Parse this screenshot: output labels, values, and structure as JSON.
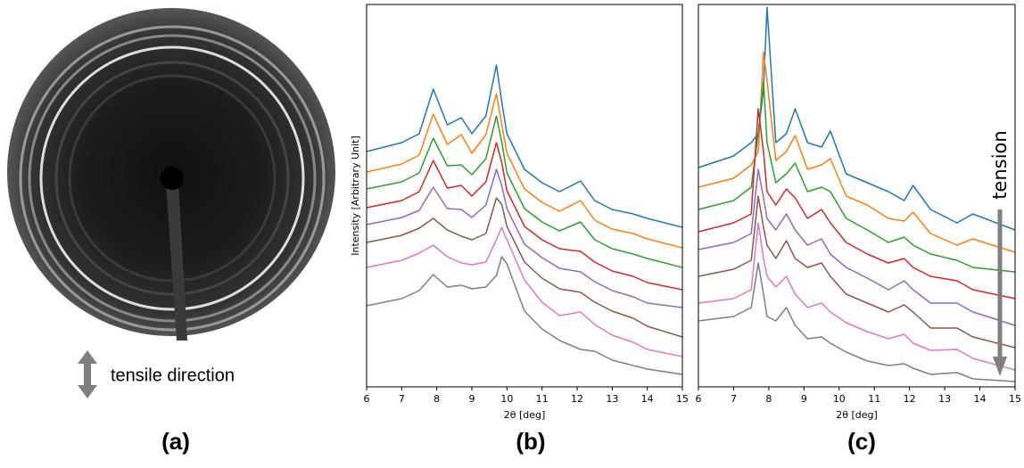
{
  "figure": {
    "panel_labels": [
      "(a)",
      "(b)",
      "(c)"
    ],
    "image_caption": "tensile direction"
  },
  "chart_data": [
    {
      "type": "line",
      "xlabel": "2θ [deg]",
      "ylabel": "Intensity [Arbitrary Unit]",
      "xlim": [
        6,
        15
      ],
      "xticks": [
        6,
        7,
        8,
        9,
        10,
        11,
        12,
        13,
        14,
        15
      ],
      "ylim": [
        0,
        429
      ],
      "x": [
        6,
        7,
        7.5,
        7.9,
        8.3,
        8.7,
        9.0,
        9.4,
        9.7,
        9.85,
        10.0,
        10.5,
        11,
        11.5,
        12.1,
        12.5,
        13,
        13.6,
        14,
        15
      ],
      "series": [
        {
          "color": "#1f77b4",
          "values": [
            264,
            274,
            284,
            334,
            294,
            302,
            284,
            304,
            361,
            320,
            284,
            244,
            229,
            219,
            231,
            209,
            199,
            194,
            189,
            179
          ]
        },
        {
          "color": "#ff7f0e",
          "values": [
            241,
            250,
            260,
            306,
            272,
            283,
            262,
            283,
            329,
            295,
            262,
            222,
            207,
            197,
            209,
            187,
            177,
            172,
            166,
            156
          ]
        },
        {
          "color": "#2ca02c",
          "values": [
            222,
            230,
            240,
            279,
            248,
            249,
            238,
            256,
            304,
            275,
            240,
            200,
            185,
            175,
            185,
            165,
            155,
            149,
            144,
            134
          ]
        },
        {
          "color": "#d62728",
          "values": [
            201,
            209,
            219,
            254,
            223,
            226,
            214,
            230,
            274,
            252,
            220,
            180,
            165,
            155,
            152,
            140,
            130,
            124,
            117,
            109
          ]
        },
        {
          "color": "#9467bd",
          "values": [
            182,
            190,
            198,
            224,
            200,
            199,
            190,
            204,
            244,
            226,
            200,
            160,
            145,
            133,
            129,
            118,
            108,
            101,
            94,
            89
          ]
        },
        {
          "color": "#8c564b",
          "values": [
            162,
            170,
            178,
            189,
            176,
            169,
            165,
            172,
            212,
            205,
            180,
            140,
            122,
            110,
            106,
            95,
            85,
            77,
            68,
            56
          ]
        },
        {
          "color": "#e377c2",
          "values": [
            134,
            142,
            150,
            159,
            146,
            139,
            137,
            140,
            165,
            179,
            165,
            120,
            95,
            80,
            84,
            70,
            58,
            50,
            42,
            34
          ]
        },
        {
          "color": "#7f7f7f",
          "values": [
            91,
            99,
            108,
            126,
            112,
            114,
            110,
            112,
            125,
            146,
            138,
            85,
            65,
            52,
            42,
            40,
            30,
            24,
            20,
            14
          ]
        }
      ]
    },
    {
      "type": "line",
      "xlabel": "2θ [deg]",
      "annotation": "tension",
      "xlim": [
        6,
        15
      ],
      "xticks": [
        6,
        7,
        8,
        9,
        10,
        11,
        12,
        13,
        14,
        15
      ],
      "ylim": [
        0,
        429
      ],
      "x": [
        6,
        7,
        7.5,
        7.7,
        7.85,
        7.95,
        8.2,
        8.5,
        8.75,
        9.1,
        9.5,
        9.75,
        10.2,
        10.8,
        11.4,
        11.85,
        12.1,
        12.6,
        13.35,
        13.8,
        15
      ],
      "series": [
        {
          "color": "#1f77b4",
          "values": [
            246,
            259,
            274,
            284,
            334,
            426,
            274,
            284,
            312,
            274,
            269,
            287,
            239,
            229,
            219,
            209,
            226,
            199,
            184,
            194,
            176
          ]
        },
        {
          "color": "#ff7f0e",
          "values": [
            224,
            234,
            249,
            264,
            376,
            344,
            254,
            264,
            282,
            244,
            249,
            256,
            214,
            204,
            189,
            186,
            196,
            172,
            159,
            166,
            151
          ]
        },
        {
          "color": "#2ca02c",
          "values": [
            199,
            209,
            224,
            284,
            342,
            274,
            229,
            239,
            251,
            219,
            224,
            219,
            189,
            176,
            162,
            168,
            159,
            149,
            142,
            134,
            129
          ]
        },
        {
          "color": "#d62728",
          "values": [
            174,
            184,
            194,
            312,
            264,
            219,
            204,
            222,
            212,
            189,
            199,
            184,
            162,
            149,
            139,
            144,
            134,
            124,
            119,
            109,
            99
          ]
        },
        {
          "color": "#9467bd",
          "values": [
            154,
            162,
            172,
            244,
            212,
            189,
            176,
            194,
            176,
            159,
            166,
            149,
            134,
            122,
            109,
            119,
            109,
            94,
            94,
            84,
            69
          ]
        },
        {
          "color": "#8c564b",
          "values": [
            124,
            132,
            142,
            214,
            179,
            159,
            144,
            164,
            144,
            134,
            139,
            124,
            104,
            94,
            84,
            92,
            84,
            66,
            66,
            56,
            44
          ]
        },
        {
          "color": "#e377c2",
          "values": [
            94,
            99,
            109,
            184,
            144,
            124,
            112,
            124,
            104,
            89,
            94,
            84,
            72,
            62,
            54,
            59,
            49,
            41,
            42,
            32,
            19
          ]
        },
        {
          "color": "#7f7f7f",
          "values": [
            74,
            79,
            89,
            139,
            104,
            79,
            74,
            89,
            69,
            54,
            56,
            49,
            39,
            29,
            24,
            26,
            21,
            14,
            16,
            9,
            6
          ]
        }
      ]
    }
  ]
}
